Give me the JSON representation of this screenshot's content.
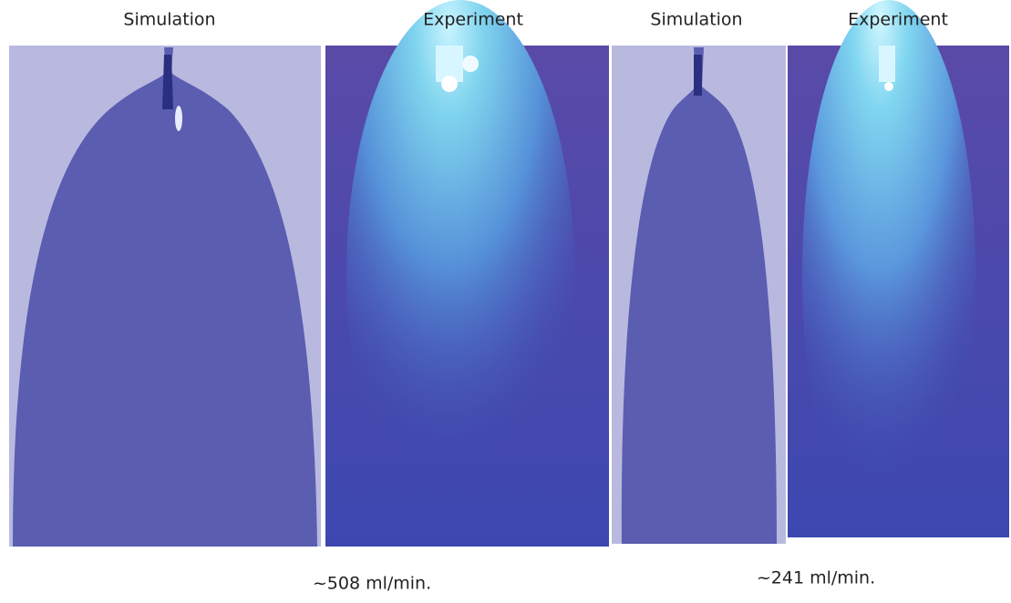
{
  "panels": [
    {
      "label": "Simulation"
    },
    {
      "label": "Experiment"
    },
    {
      "label": "Simulation"
    },
    {
      "label": "Experiment"
    }
  ],
  "captions": [
    "~508 ml/min.",
    "~241 ml/min."
  ]
}
